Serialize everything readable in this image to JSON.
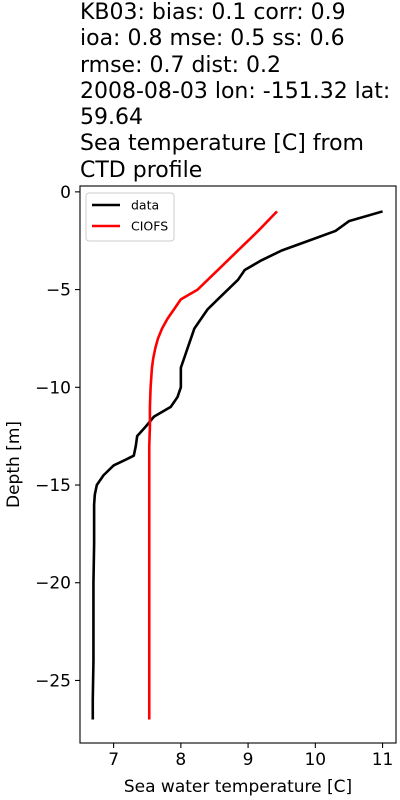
{
  "title_lines": [
    "KB03: bias: 0.1  corr: 0.9",
    "ioa: 0.8  mse: 0.5  ss: 0.6",
    "rmse: 0.7  dist: 0.2",
    "2008-08-03 lon: -151.32 lat:",
    "59.64",
    "Sea temperature [C] from",
    "CTD profile"
  ],
  "chart_data": {
    "type": "line",
    "xlabel": "Sea water temperature [C]",
    "ylabel": "Depth [m]",
    "xlim": [
      6.5,
      11.2
    ],
    "ylim": [
      -28.2,
      0.3
    ],
    "xticks": [
      7,
      8,
      9,
      10,
      11
    ],
    "yticks": [
      0,
      -5,
      -10,
      -15,
      -20,
      -25
    ],
    "grid": false,
    "legend_position": "top-left",
    "series": [
      {
        "name": "data",
        "color": "#000000",
        "x": [
          11.0,
          10.5,
          10.3,
          9.9,
          9.5,
          9.2,
          8.95,
          8.85,
          8.7,
          8.55,
          8.4,
          8.3,
          8.2,
          8.15,
          8.1,
          8.05,
          8.0,
          8.0,
          8.0,
          7.95,
          7.85,
          7.6,
          7.48,
          7.35,
          7.33,
          7.3,
          7.0,
          6.85,
          6.75,
          6.72,
          6.71,
          6.71,
          6.7,
          6.7,
          6.7,
          6.69,
          6.69
        ],
        "y": [
          -1.0,
          -1.5,
          -2.0,
          -2.5,
          -3.0,
          -3.5,
          -4.0,
          -4.5,
          -5.0,
          -5.5,
          -6.0,
          -6.5,
          -7.0,
          -7.5,
          -8.0,
          -8.5,
          -9.0,
          -9.5,
          -10.0,
          -10.5,
          -11.0,
          -11.5,
          -12.0,
          -12.5,
          -13.0,
          -13.5,
          -14.0,
          -14.5,
          -15.0,
          -15.5,
          -16.0,
          -18.0,
          -20.0,
          -22.0,
          -24.0,
          -26.0,
          -27.0
        ]
      },
      {
        "name": "CIOFS",
        "color": "#ff0000",
        "x": [
          9.43,
          9.15,
          8.85,
          8.55,
          8.25,
          8.0,
          7.9,
          7.8,
          7.72,
          7.66,
          7.62,
          7.59,
          7.57,
          7.56,
          7.55,
          7.54,
          7.54,
          7.53,
          7.53,
          7.53,
          7.53,
          7.53,
          7.53,
          7.53,
          7.53,
          7.53
        ],
        "y": [
          -1.0,
          -2.0,
          -3.0,
          -4.0,
          -5.0,
          -5.5,
          -6.0,
          -6.5,
          -7.0,
          -7.5,
          -8.0,
          -8.5,
          -9.0,
          -9.5,
          -10.0,
          -11.0,
          -12.0,
          -13.0,
          -14.0,
          -16.0,
          -18.0,
          -20.0,
          -22.0,
          -24.0,
          -26.0,
          -27.0
        ]
      }
    ]
  }
}
